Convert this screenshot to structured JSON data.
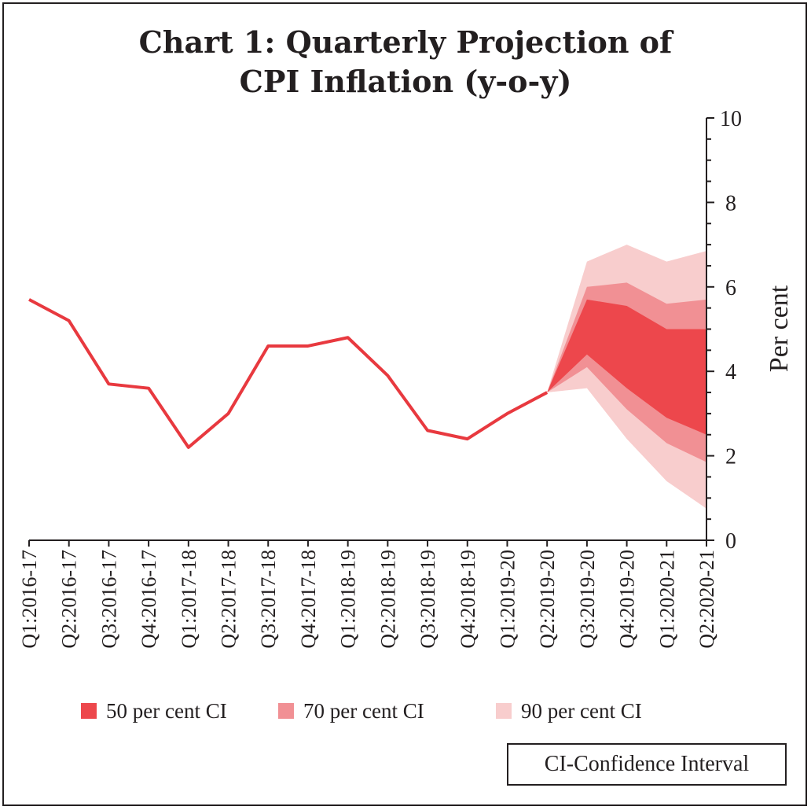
{
  "chart_data": {
    "type": "line",
    "title": "Chart 1: Quarterly Projection of",
    "subtitle": "CPI Inflation (y-o-y)",
    "ylabel": "Per cent",
    "ylim": [
      0,
      10
    ],
    "yticks": [
      0,
      2,
      4,
      6,
      8,
      10
    ],
    "y_axis_position": "right",
    "categories": [
      "Q1:2016-17",
      "Q2:2016-17",
      "Q3:2016-17",
      "Q4:2016-17",
      "Q1:2017-18",
      "Q2:2017-18",
      "Q3:2017-18",
      "Q4:2017-18",
      "Q1:2018-19",
      "Q2:2018-19",
      "Q3:2018-19",
      "Q4:2018-19",
      "Q1:2019-20",
      "Q2:2019-20",
      "Q3:2019-20",
      "Q4:2019-20",
      "Q1:2020-21",
      "Q2:2020-21"
    ],
    "series": [
      {
        "values": [
          5.7,
          5.2,
          3.7,
          3.6,
          2.2,
          3.0,
          4.6,
          4.6,
          4.8,
          3.9,
          2.6,
          2.4,
          3.0,
          3.5,
          null,
          null,
          null,
          null
        ],
        "color": "#e8393f"
      }
    ],
    "confidence_bands": [
      {
        "name": "90 per cent CI",
        "color": "#f8cdcd",
        "lower": [
          null,
          null,
          null,
          null,
          null,
          null,
          null,
          null,
          null,
          null,
          null,
          null,
          null,
          3.5,
          3.6,
          2.4,
          1.4,
          0.75
        ],
        "upper": [
          null,
          null,
          null,
          null,
          null,
          null,
          null,
          null,
          null,
          null,
          null,
          null,
          null,
          3.5,
          6.6,
          7.0,
          6.6,
          6.85
        ]
      },
      {
        "name": "70 per cent CI",
        "color": "#f19094",
        "lower": [
          null,
          null,
          null,
          null,
          null,
          null,
          null,
          null,
          null,
          null,
          null,
          null,
          null,
          3.5,
          4.1,
          3.1,
          2.3,
          1.85
        ],
        "upper": [
          null,
          null,
          null,
          null,
          null,
          null,
          null,
          null,
          null,
          null,
          null,
          null,
          null,
          3.5,
          6.0,
          6.1,
          5.6,
          5.7
        ]
      },
      {
        "name": "50 per cent CI",
        "color": "#ed474c",
        "lower": [
          null,
          null,
          null,
          null,
          null,
          null,
          null,
          null,
          null,
          null,
          null,
          null,
          null,
          3.5,
          4.4,
          3.6,
          2.9,
          2.5
        ],
        "upper": [
          null,
          null,
          null,
          null,
          null,
          null,
          null,
          null,
          null,
          null,
          null,
          null,
          null,
          3.5,
          5.7,
          5.55,
          5.0,
          5.0
        ]
      }
    ],
    "legend": {
      "position": "bottom",
      "items": [
        {
          "label": "50 per cent CI",
          "color": "#ed474c"
        },
        {
          "label": "70 per cent CI",
          "color": "#f19094"
        },
        {
          "label": "90 per cent CI",
          "color": "#f8cdcd"
        }
      ]
    },
    "note": "CI-Confidence Interval",
    "grid": false
  }
}
